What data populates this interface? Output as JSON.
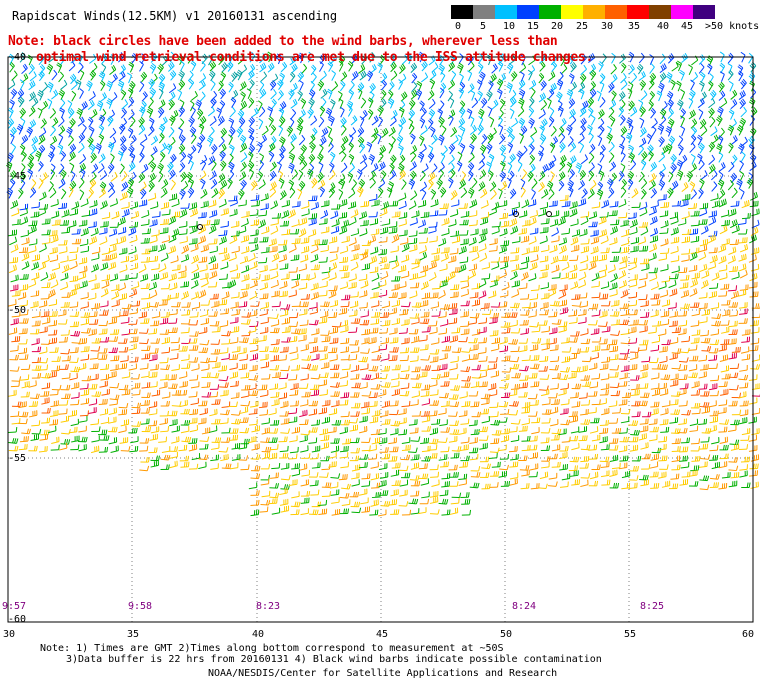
{
  "header": {
    "title": "Rapidscat Winds(12.5KM) v1 20160131 ascending",
    "note_line1": "Note: black circles have been added to the wind barbs, wherever less than",
    "note_line2": "optimal wind retrieval conditions are met due to the ISS attitude changes."
  },
  "legend": {
    "labels": [
      "0",
      "5",
      "10",
      "15",
      "20",
      "25",
      "30",
      "35",
      "40",
      "45",
      ">50 knots"
    ],
    "colors": [
      "#000000",
      "#808080",
      "#00c0ff",
      "#0040ff",
      "#00b000",
      "#ffff00",
      "#ffb000",
      "#ff6000",
      "#ff0000",
      "#804000",
      "#ff00ff",
      "#400080"
    ]
  },
  "map": {
    "lat_labels": [
      "-40",
      "-45",
      "-50",
      "-55",
      "-60"
    ],
    "lon_labels": [
      "30",
      "35",
      "40",
      "45",
      "50",
      "55",
      "60"
    ],
    "time_labels": [
      "9:57",
      "9:58",
      "8:23",
      "8:24",
      "8:25"
    ]
  },
  "footer": {
    "line1": "Note: 1) Times are GMT 2)Times along bottom correspond to measurement at ~50S",
    "line2": "3)Data buffer is 22 hrs from 20160131 4) Black wind barbs indicate possible contamination",
    "line3": "NOAA/NESDIS/Center for Satellite Applications and Research"
  }
}
